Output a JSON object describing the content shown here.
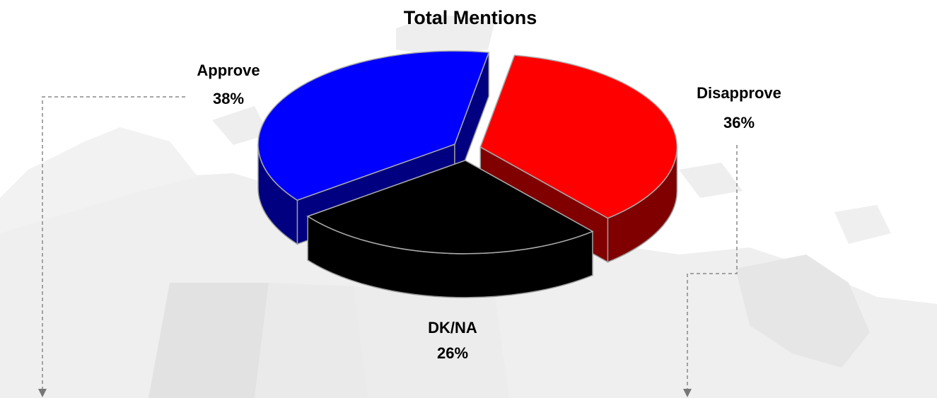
{
  "chart_data": {
    "type": "pie",
    "title": "Total Mentions",
    "categories": [
      "Approve",
      "Disapprove",
      "DK/NA"
    ],
    "values": [
      38,
      36,
      26
    ],
    "value_labels": [
      "38%",
      "36%",
      "26%"
    ],
    "colors": [
      "#0000ff",
      "#ff0000",
      "#000000"
    ]
  }
}
